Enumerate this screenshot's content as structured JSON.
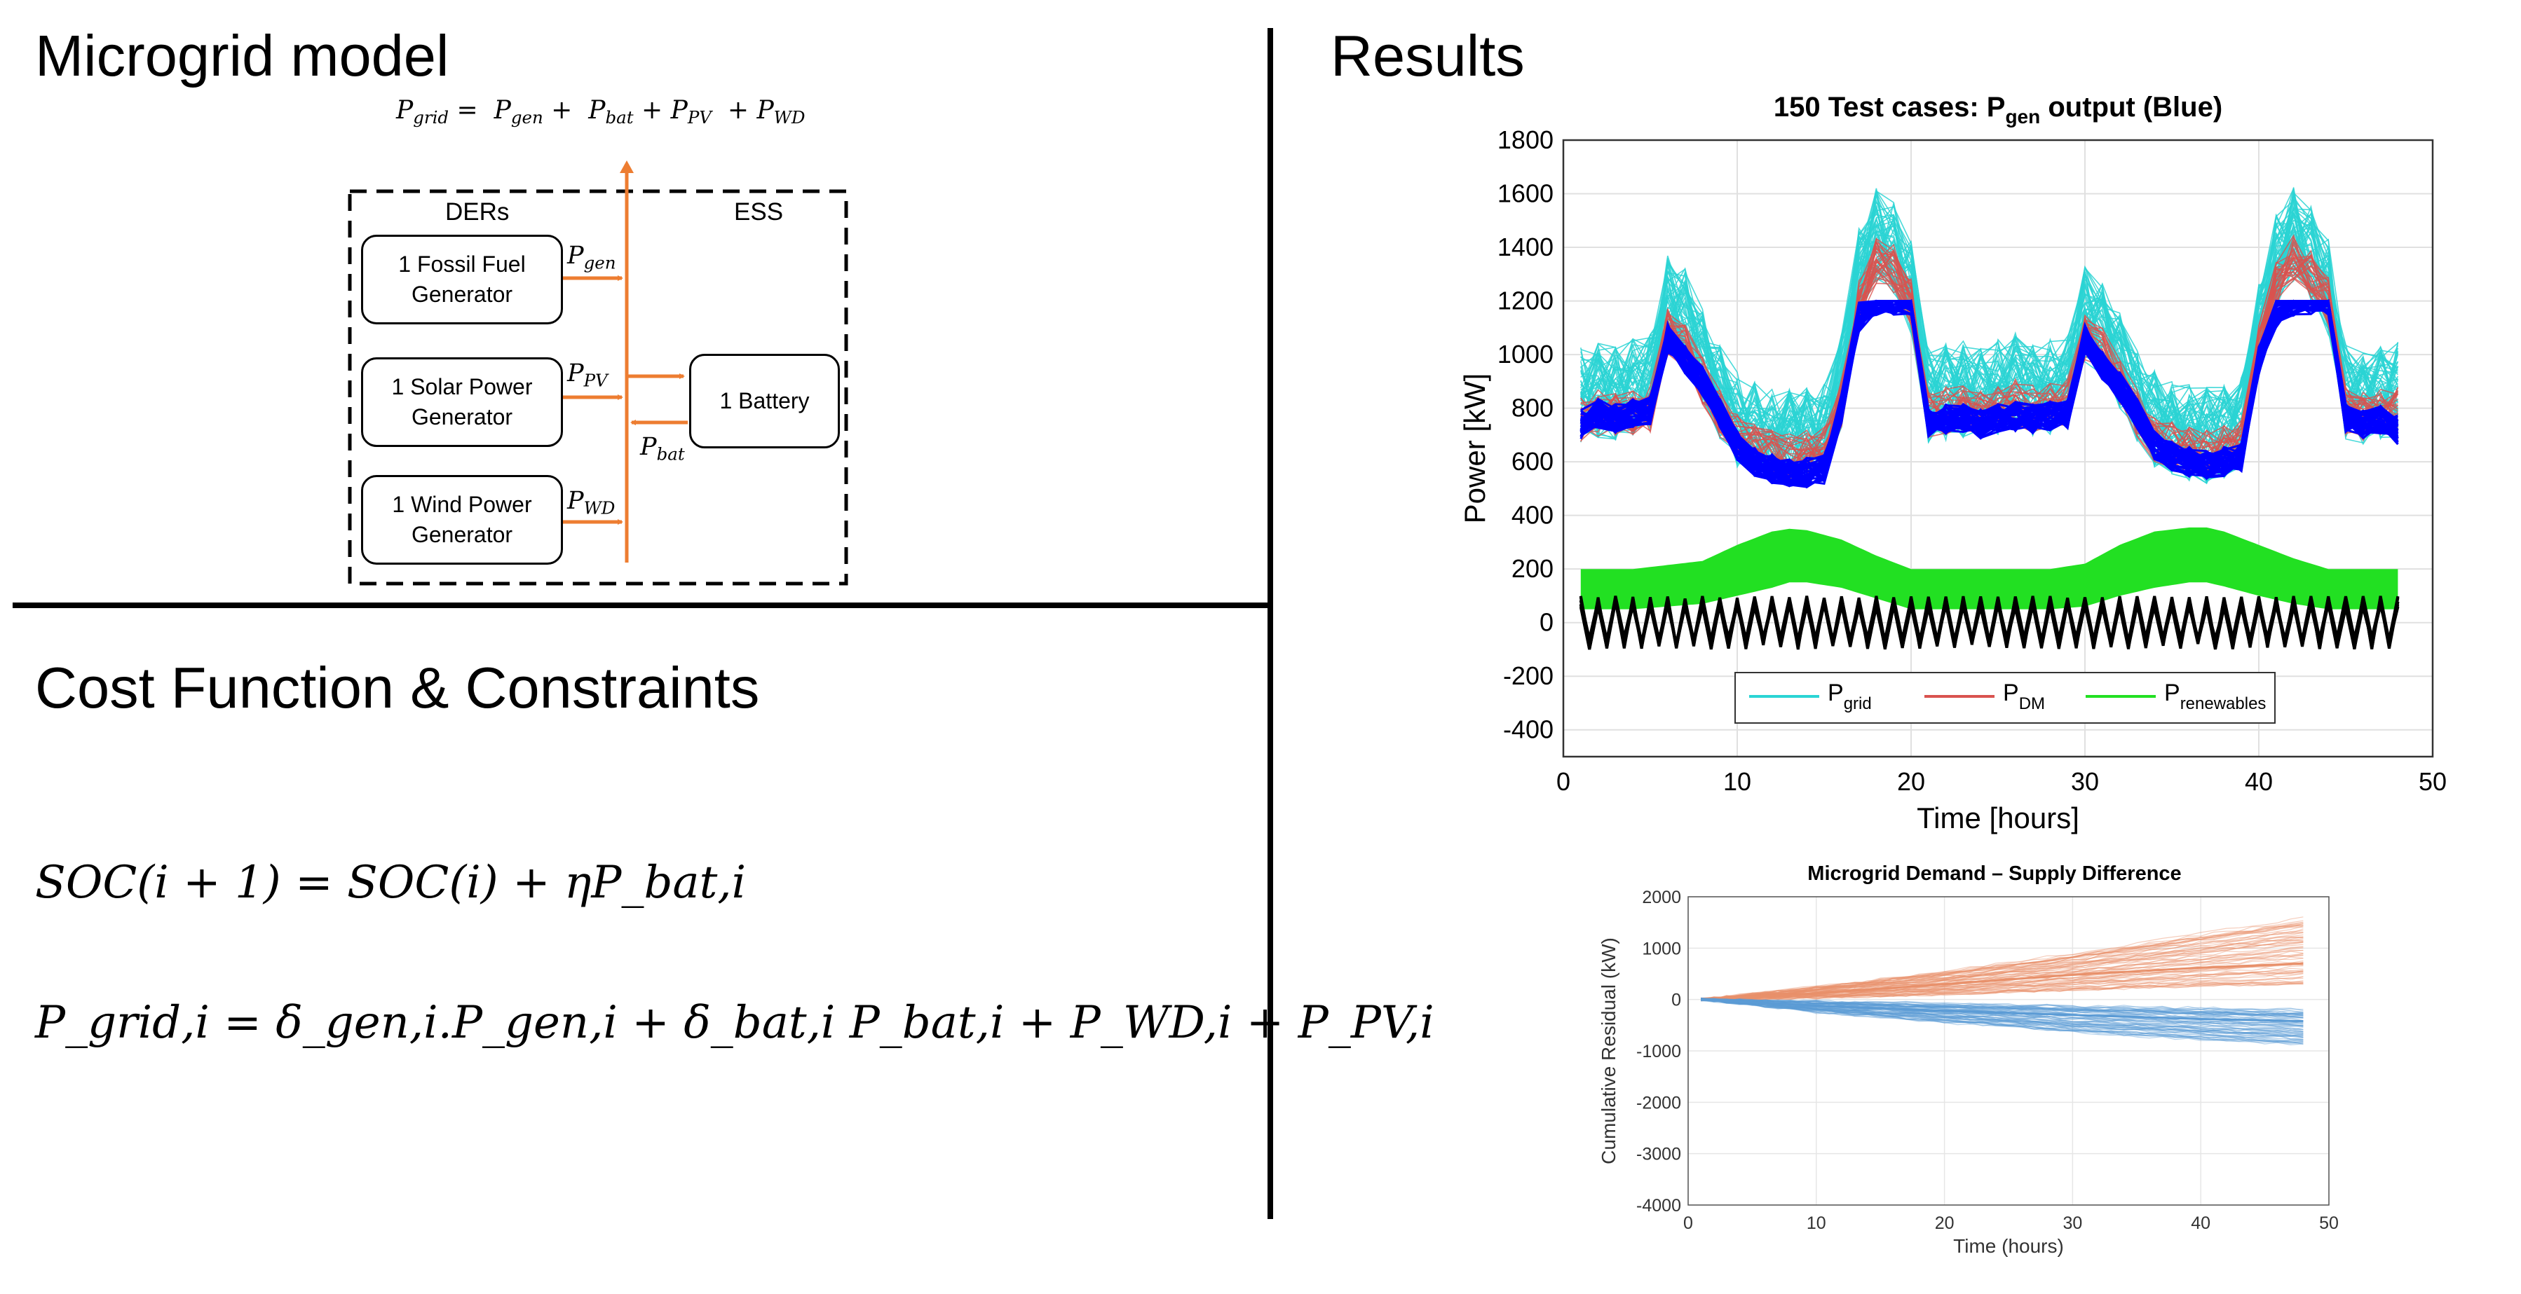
{
  "headings": {
    "model": "Microgrid model",
    "cost": "Cost Function & Constraints",
    "results": "Results"
  },
  "equations": {
    "grid_sum": {
      "lhs": "grid",
      "terms": [
        "gen",
        "bat",
        "PV",
        "WD"
      ]
    },
    "soc": "SOC(i + 1) = SOC(i) + ηP_bat,i",
    "pgrid": "P_grid,i = δ_gen,i.P_gen,i + δ_bat,i P_bat,i + P_WD,i + P_PV,i"
  },
  "diagram": {
    "ders_label": "DERs",
    "ess_label": "ESS",
    "fossil": "1 Fossil Fuel Generator",
    "solar": "1 Solar Power Generator",
    "wind": "1 Wind Power Generator",
    "battery": "1 Battery",
    "p_gen": "gen",
    "p_pv": "PV",
    "p_bat": "bat",
    "p_wd": "WD",
    "arrow_color": "#ED7D31"
  },
  "chart_data": [
    {
      "type": "line",
      "title": "150 Test cases: P",
      "title_sub": "gen",
      "title_suffix": " output (Blue)",
      "xlabel": "Time [hours]",
      "ylabel": "Power [kW]",
      "xlim": [
        0,
        50
      ],
      "ylim": [
        -500,
        1800
      ],
      "xticks": [
        0,
        10,
        20,
        30,
        40,
        50
      ],
      "yticks": [
        -400,
        -200,
        0,
        200,
        400,
        600,
        800,
        1000,
        1200,
        1400,
        1600,
        1800
      ],
      "grid": true,
      "legend_position": "bottom-center",
      "cases": 150,
      "colors": {
        "grid": "#2ad4d4",
        "dm": "#d9534f",
        "renewables": "#22e022",
        "gen": "#0000ff",
        "bat": "#000000"
      },
      "series": [
        {
          "name": "P",
          "name_sub": "grid",
          "color": "#2ad4d4",
          "x": [
            1,
            2,
            3,
            4,
            5,
            6,
            7,
            8,
            9,
            10,
            11,
            12,
            13,
            14,
            15,
            16,
            17,
            18,
            19,
            20,
            21,
            22,
            23,
            24,
            25,
            26,
            27,
            28,
            29,
            30,
            31,
            32,
            33,
            34,
            35,
            36,
            37,
            38,
            39,
            40,
            41,
            42,
            43,
            44,
            45,
            46,
            47,
            48
          ],
          "y": [
            850,
            870,
            860,
            880,
            900,
            1200,
            1150,
            1000,
            860,
            760,
            720,
            700,
            690,
            700,
            710,
            900,
            1300,
            1450,
            1400,
            1250,
            850,
            860,
            870,
            850,
            880,
            900,
            870,
            880,
            900,
            1150,
            1100,
            980,
            850,
            760,
            730,
            710,
            700,
            720,
            740,
            1100,
            1350,
            1450,
            1380,
            1250,
            860,
            840,
            850,
            870
          ],
          "spread": 180
        },
        {
          "name": "P",
          "name_sub": "DM",
          "color": "#d9534f",
          "x": [
            1,
            2,
            3,
            4,
            5,
            6,
            7,
            8,
            9,
            10,
            11,
            12,
            13,
            14,
            15,
            16,
            17,
            18,
            19,
            20,
            21,
            22,
            23,
            24,
            25,
            26,
            27,
            28,
            29,
            30,
            31,
            32,
            33,
            34,
            35,
            36,
            37,
            38,
            39,
            40,
            41,
            42,
            43,
            44,
            45,
            46,
            47,
            48
          ],
          "y": [
            760,
            780,
            770,
            790,
            800,
            1080,
            1040,
            900,
            780,
            690,
            650,
            630,
            620,
            630,
            640,
            820,
            1200,
            1350,
            1320,
            1200,
            780,
            790,
            800,
            780,
            800,
            820,
            800,
            810,
            820,
            1060,
            1010,
            900,
            780,
            690,
            660,
            640,
            630,
            650,
            670,
            1020,
            1260,
            1360,
            1300,
            1200,
            790,
            770,
            780,
            790
          ],
          "spread": 90
        },
        {
          "name": "P",
          "name_sub": "renewables",
          "color": "#22e022",
          "x": [
            1,
            4,
            8,
            10,
            12,
            13,
            14,
            16,
            18,
            20,
            24,
            28,
            30,
            32,
            34,
            36,
            37,
            38,
            40,
            42,
            44,
            48
          ],
          "y_upper": [
            200,
            200,
            230,
            290,
            340,
            350,
            345,
            310,
            250,
            200,
            200,
            200,
            220,
            290,
            340,
            355,
            355,
            340,
            290,
            240,
            200,
            200
          ],
          "y_lower": [
            50,
            50,
            70,
            100,
            130,
            150,
            150,
            130,
            90,
            50,
            50,
            50,
            60,
            100,
            130,
            150,
            150,
            135,
            100,
            70,
            50,
            50
          ]
        },
        {
          "name": "P",
          "name_sub": "gen",
          "color": "#0000ff",
          "x": [
            1,
            2,
            3,
            4,
            5,
            6,
            7,
            8,
            9,
            10,
            11,
            12,
            13,
            14,
            15,
            16,
            17,
            18,
            19,
            20,
            21,
            22,
            23,
            24,
            25,
            26,
            27,
            28,
            29,
            30,
            31,
            32,
            33,
            34,
            35,
            36,
            37,
            38,
            39,
            40,
            41,
            42,
            43,
            44,
            45,
            46,
            47,
            48
          ],
          "y": [
            740,
            780,
            760,
            780,
            790,
            1060,
            980,
            900,
            780,
            660,
            600,
            575,
            560,
            560,
            570,
            800,
            1140,
            1200,
            1200,
            1200,
            750,
            760,
            760,
            740,
            760,
            770,
            760,
            770,
            780,
            1060,
            960,
            880,
            780,
            660,
            620,
            600,
            590,
            600,
            620,
            980,
            1150,
            1200,
            1200,
            1200,
            760,
            740,
            760,
            720
          ],
          "spread": 55
        },
        {
          "name": "P",
          "name_sub": "bat",
          "color": "#000000",
          "x_start": 1,
          "x_end": 48,
          "amplitude_high": 100,
          "amplitude_low": -100,
          "period_hours": 1
        }
      ]
    },
    {
      "type": "line",
      "title": "Microgrid Demand – Supply Difference",
      "xlabel": "Time (hours)",
      "ylabel": "Cumulative Residual (kW)",
      "xlim": [
        0,
        50
      ],
      "ylim": [
        -4000,
        2000
      ],
      "xticks": [
        0,
        10,
        20,
        30,
        40,
        50
      ],
      "yticks": [
        -4000,
        -3000,
        -2000,
        -1000,
        0,
        1000,
        2000
      ],
      "grid": true,
      "series": [
        {
          "color": "#e8906a",
          "x": [
            1,
            10,
            20,
            30,
            40,
            48
          ],
          "y_upper": [
            0,
            250,
            550,
            900,
            1300,
            1600
          ],
          "y_lower": [
            0,
            30,
            100,
            180,
            260,
            300
          ],
          "y_mean": [
            0,
            120,
            300,
            480,
            620,
            700
          ]
        },
        {
          "color": "#5b9bd5",
          "x": [
            1,
            10,
            20,
            30,
            40,
            48
          ],
          "y_upper": [
            0,
            -30,
            -70,
            -110,
            -150,
            -180
          ],
          "y_lower": [
            0,
            -250,
            -450,
            -650,
            -800,
            -900
          ],
          "y_mean": [
            0,
            -120,
            -220,
            -300,
            -380,
            -420
          ]
        }
      ]
    }
  ]
}
